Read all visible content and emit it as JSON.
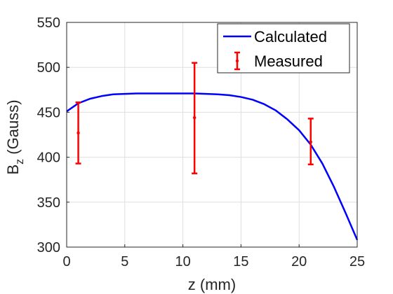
{
  "chart_data": {
    "type": "line",
    "xlabel": "z (mm)",
    "ylabel": {
      "base": "B",
      "sub": "z",
      "rest": " (Gauss)"
    },
    "xlim": [
      0,
      25
    ],
    "ylim": [
      300,
      550
    ],
    "xticks": [
      0,
      5,
      10,
      15,
      20,
      25
    ],
    "yticks": [
      300,
      350,
      400,
      450,
      500,
      550
    ],
    "xtick_labels": [
      "0",
      "5",
      "10",
      "15",
      "20",
      "25"
    ],
    "ytick_labels": [
      "300",
      "350",
      "400",
      "450",
      "500",
      "550"
    ],
    "grid": true,
    "legend_position": "top-right",
    "legend": [
      "Calculated",
      "Measured"
    ],
    "series": [
      {
        "name": "Calculated",
        "kind": "line",
        "color": "#0000ff",
        "x": [
          0,
          1,
          2,
          3,
          4,
          5,
          6,
          7,
          8,
          9,
          10,
          11,
          12,
          13,
          14,
          15,
          16,
          17,
          18,
          19,
          20,
          21,
          22,
          23,
          24,
          25
        ],
        "y": [
          451,
          460,
          465,
          468,
          470,
          470.5,
          471,
          471,
          471,
          471,
          471,
          471,
          470.5,
          470,
          469,
          467,
          464,
          459,
          452,
          442,
          430,
          414,
          393,
          367,
          338,
          308
        ]
      },
      {
        "name": "Measured",
        "kind": "errorbar",
        "color": "#ff0000",
        "x": [
          1,
          11,
          21
        ],
        "y": [
          427,
          444,
          417
        ],
        "lower": [
          393,
          382,
          392
        ],
        "upper": [
          461,
          505,
          443
        ]
      }
    ]
  }
}
